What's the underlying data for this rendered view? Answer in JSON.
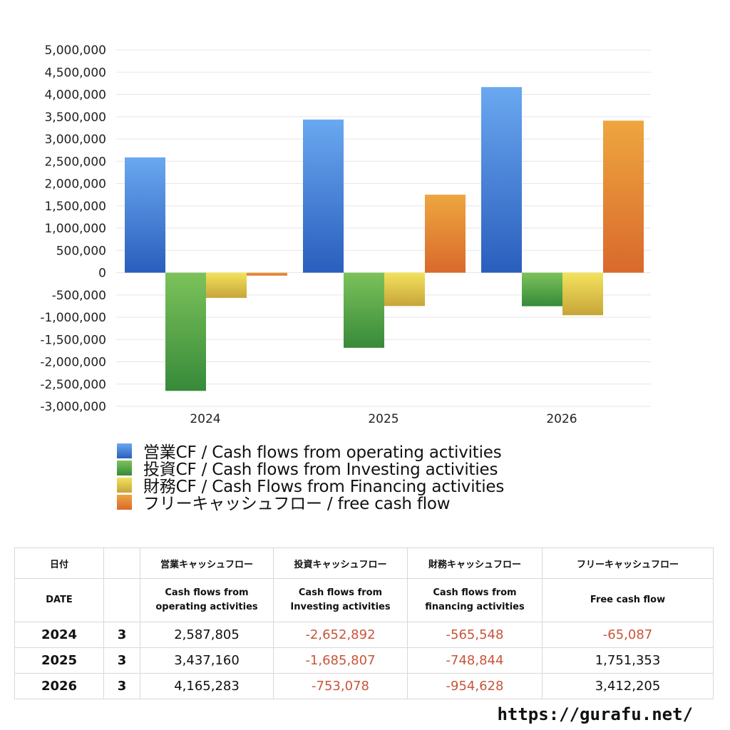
{
  "chart_data": {
    "type": "bar",
    "categories": [
      "2024",
      "2025",
      "2026"
    ],
    "ylim": [
      -3000000,
      5000000
    ],
    "y_ticks": [
      5000000,
      4500000,
      4000000,
      3500000,
      3000000,
      2500000,
      2000000,
      1500000,
      1000000,
      500000,
      0,
      -500000,
      -1000000,
      -1500000,
      -2000000,
      -2500000,
      -3000000
    ],
    "y_tick_labels": [
      "5,000,000",
      "4,500,000",
      "4,000,000",
      "3,500,000",
      "3,000,000",
      "2,500,000",
      "2,000,000",
      "1,500,000",
      "1,000,000",
      "500,000",
      "0",
      "-500,000",
      "-1,000,000",
      "-1,500,000",
      "-2,000,000",
      "-2,500,000",
      "-3,000,000"
    ],
    "grid": true,
    "legend_position": "bottom",
    "series": [
      {
        "name": "営業CF / Cash flows from operating activities",
        "values": [
          2587805,
          3437160,
          4165283
        ],
        "color_top": "#6aa8f0",
        "color_bottom": "#2a5ebd"
      },
      {
        "name": "投資CF / Cash flows from Investing activities",
        "values": [
          -2652892,
          -1685807,
          -753078
        ],
        "color_top": "#7cc25a",
        "color_bottom": "#378a3a"
      },
      {
        "name": "財務CF / Cash Flows from Financing activities",
        "values": [
          -565548,
          -748844,
          -954628
        ],
        "color_top": "#f3e25c",
        "color_bottom": "#c7a53a"
      },
      {
        "name": "フリーキャッシュフロー / free cash flow",
        "values": [
          -65087,
          1751353,
          3412205
        ],
        "color_top": "#eea63f",
        "color_bottom": "#d9692c"
      }
    ]
  },
  "table": {
    "header1": [
      "日付",
      "",
      "営業キャッシュフロー",
      "投資キャッシュフロー",
      "財務キャッシュフロー",
      "フリーキャッシュフロー"
    ],
    "header2": [
      "DATE",
      "",
      "Cash flows from operating activities",
      "Cash flows from Investing activities",
      "Cash flows from financing activities",
      "Free cash flow"
    ],
    "rows": [
      {
        "year": "2024",
        "month": "3",
        "values": [
          "2,587,805",
          "-2,652,892",
          "-565,548",
          "-65,087"
        ]
      },
      {
        "year": "2025",
        "month": "3",
        "values": [
          "3,437,160",
          "-1,685,807",
          "-748,844",
          "1,751,353"
        ]
      },
      {
        "year": "2026",
        "month": "3",
        "values": [
          "4,165,283",
          "-753,078",
          "-954,628",
          "3,412,205"
        ]
      }
    ]
  },
  "footer": {
    "url": "https://gurafu.net/"
  },
  "colors": {
    "negative_text": "#c8553a",
    "grid": "#e6e6e6"
  }
}
